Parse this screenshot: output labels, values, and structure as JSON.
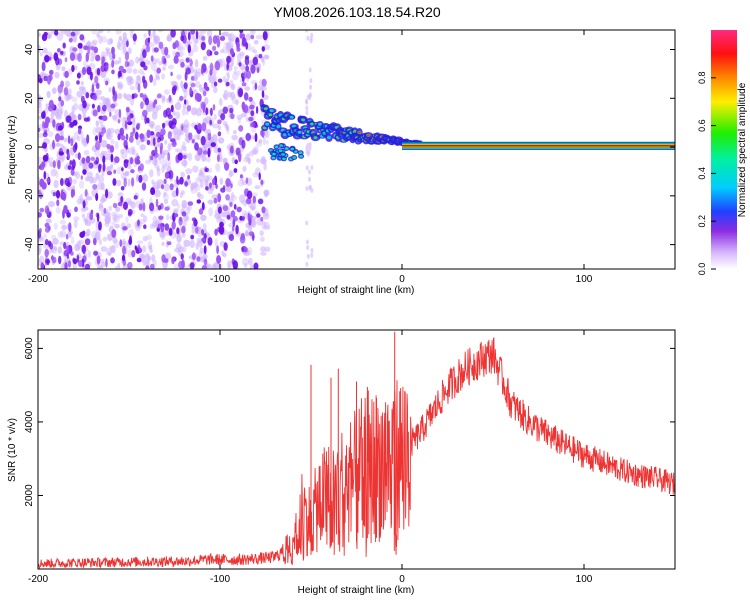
{
  "title": "YM08.2026.103.18.54.R20",
  "chart_data": [
    {
      "type": "heatmap",
      "xlabel": "Height of straight line (km)",
      "ylabel": "Frequency (Hz)",
      "xlim": [
        -200,
        150
      ],
      "ylim": [
        -50,
        48
      ],
      "xticks": [
        -200,
        -100,
        0,
        100
      ],
      "yticks": [
        -40,
        -20,
        0,
        20,
        40
      ],
      "colorbar": {
        "label": "Normalized spectral amplitude",
        "range": [
          0.0,
          1.0
        ],
        "ticks": [
          0.0,
          0.2,
          0.4,
          0.6,
          0.8
        ],
        "tick_labels": [
          "0.0",
          "0.2",
          "0.4",
          "0.6",
          "0.8"
        ]
      },
      "regions": [
        {
          "name": "noise",
          "x_range": [
            -200,
            -75
          ],
          "freq_range": [
            -50,
            48
          ],
          "amplitude": 0.1
        },
        {
          "name": "dispersed-signal",
          "x_range": [
            -76,
            10
          ],
          "freq_start": 12,
          "freq_end": 1,
          "amplitude": 0.45
        },
        {
          "name": "steady-tone",
          "x_range": [
            0,
            150
          ],
          "frequency": 0.5,
          "amplitude": 1.0
        }
      ],
      "colors": {
        "low": "#e6d6ff",
        "mid": "#7a1cf0",
        "line_center": "#e81010",
        "line_edge": "#00c03c"
      }
    },
    {
      "type": "line",
      "xlabel": "Height of straight line (km)",
      "ylabel": "SNR (10 * v/v)",
      "xlim": [
        -200,
        150
      ],
      "ylim": [
        0,
        6500
      ],
      "xticks": [
        -200,
        -100,
        0,
        100
      ],
      "yticks": [
        2000,
        4000,
        6000
      ],
      "series": [
        {
          "name": "SNR",
          "color": "#ee3333",
          "x": [
            -200,
            -180,
            -160,
            -140,
            -120,
            -105,
            -90,
            -80,
            -70,
            -62,
            -55,
            -50,
            -45,
            -40,
            -35,
            -30,
            -25,
            -20,
            -15,
            -10,
            -5,
            -1,
            0,
            5,
            10,
            15,
            20,
            25,
            30,
            35,
            40,
            45,
            50,
            55,
            60,
            70,
            80,
            90,
            100,
            110,
            120,
            130,
            140,
            150
          ],
          "values": [
            150,
            170,
            180,
            200,
            210,
            260,
            250,
            280,
            320,
            600,
            1600,
            1300,
            1900,
            2000,
            2200,
            2300,
            2500,
            2800,
            2800,
            3000,
            3050,
            3100,
            3200,
            3400,
            3700,
            4100,
            4500,
            4900,
            5200,
            5450,
            5600,
            5750,
            5850,
            5200,
            4500,
            4000,
            3650,
            3350,
            3100,
            2900,
            2700,
            2550,
            2450,
            2300
          ],
          "spikes": [
            {
              "x": -50,
              "y": 5550
            },
            {
              "x": -39,
              "y": 5200
            },
            {
              "x": -35,
              "y": 5450
            },
            {
              "x": -25,
              "y": 5100
            },
            {
              "x": -19,
              "y": 4950
            },
            {
              "x": -14,
              "y": 4650
            },
            {
              "x": -4,
              "y": 6450
            },
            {
              "x": -3,
              "y": 600
            }
          ]
        }
      ]
    }
  ]
}
